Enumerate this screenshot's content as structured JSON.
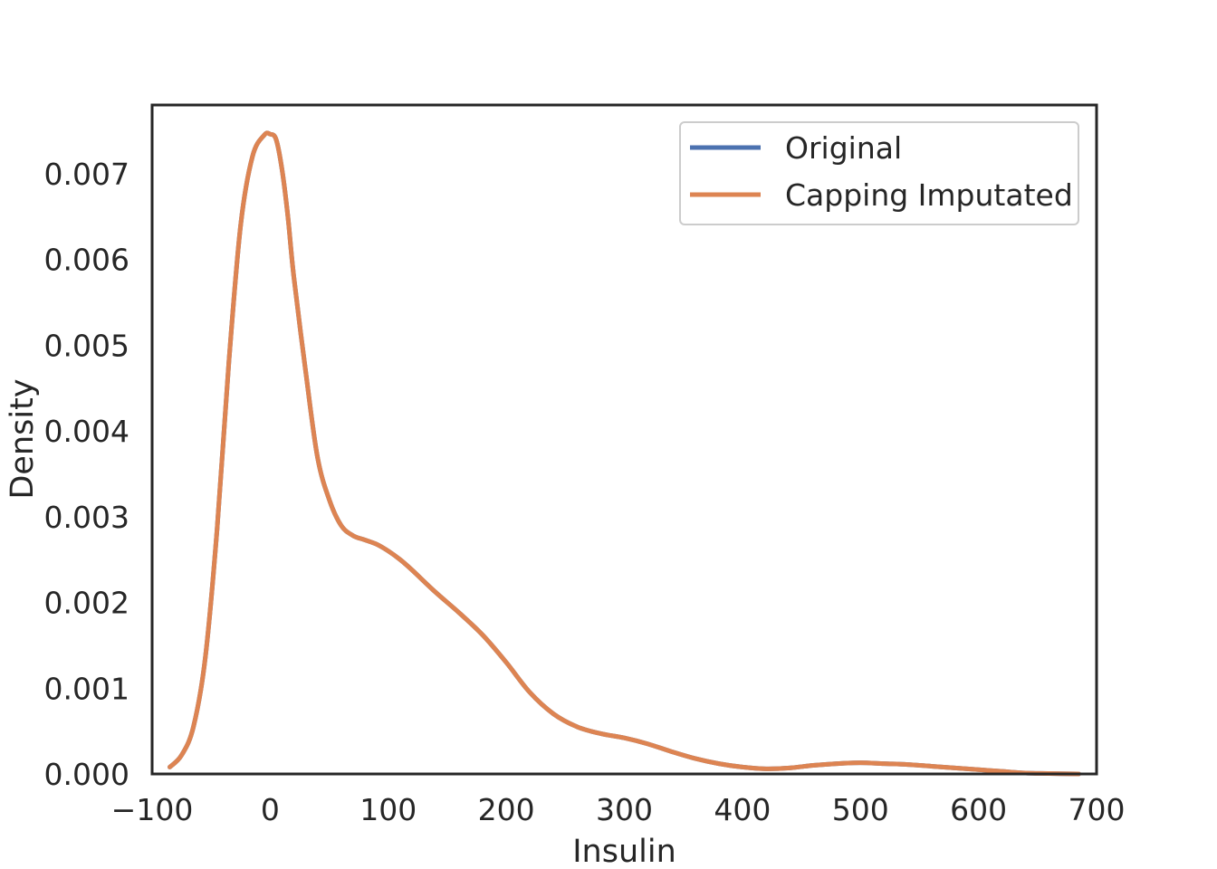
{
  "chart_data": {
    "type": "line",
    "title": "",
    "xlabel": "Insulin",
    "ylabel": "Density",
    "xlim": [
      -100,
      700
    ],
    "ylim": [
      0,
      0.0078
    ],
    "x_ticks": [
      "−100",
      "0",
      "100",
      "200",
      "300",
      "400",
      "500",
      "600",
      "700"
    ],
    "y_ticks": [
      "0.000",
      "0.001",
      "0.002",
      "0.003",
      "0.004",
      "0.005",
      "0.006",
      "0.007"
    ],
    "grid": false,
    "legend_position": "top-right",
    "x": [
      -85,
      -75,
      -65,
      -55,
      -45,
      -35,
      -25,
      -15,
      -5,
      0,
      5,
      10,
      15,
      20,
      30,
      40,
      50,
      60,
      70,
      80,
      90,
      100,
      110,
      120,
      140,
      160,
      180,
      200,
      220,
      240,
      260,
      280,
      300,
      320,
      340,
      360,
      380,
      400,
      420,
      440,
      460,
      480,
      500,
      520,
      540,
      560,
      580,
      600,
      620,
      640,
      660,
      685
    ],
    "series": [
      {
        "name": "Original",
        "color": "#4c72b0",
        "values": [
          8e-05,
          0.00022,
          0.00055,
          0.00135,
          0.00285,
          0.0048,
          0.0064,
          0.0072,
          0.00745,
          0.00746,
          0.0074,
          0.00705,
          0.0065,
          0.0058,
          0.0047,
          0.0037,
          0.0032,
          0.0029,
          0.00278,
          0.00273,
          0.00268,
          0.0026,
          0.0025,
          0.00238,
          0.00212,
          0.00188,
          0.00162,
          0.0013,
          0.00095,
          0.0007,
          0.00055,
          0.00047,
          0.00042,
          0.00035,
          0.00026,
          0.00018,
          0.00012,
          8e-05,
          6e-05,
          7e-05,
          0.0001,
          0.00012,
          0.00013,
          0.00012,
          0.00011,
          9e-05,
          7e-05,
          5e-05,
          3e-05,
          1e-05,
          5e-06,
          0.0
        ]
      },
      {
        "name": "Capping Imputated",
        "color": "#dd8452",
        "values": [
          8e-05,
          0.00022,
          0.00055,
          0.00135,
          0.00285,
          0.0048,
          0.0064,
          0.0072,
          0.00745,
          0.00746,
          0.0074,
          0.00705,
          0.0065,
          0.0058,
          0.0047,
          0.0037,
          0.0032,
          0.0029,
          0.00278,
          0.00273,
          0.00268,
          0.0026,
          0.0025,
          0.00238,
          0.00212,
          0.00188,
          0.00162,
          0.0013,
          0.00095,
          0.0007,
          0.00055,
          0.00047,
          0.00042,
          0.00035,
          0.00026,
          0.00018,
          0.00012,
          8e-05,
          6e-05,
          7e-05,
          0.0001,
          0.00012,
          0.00013,
          0.00012,
          0.00011,
          9e-05,
          7e-05,
          5e-05,
          3e-05,
          1e-05,
          5e-06,
          0.0
        ]
      }
    ]
  }
}
